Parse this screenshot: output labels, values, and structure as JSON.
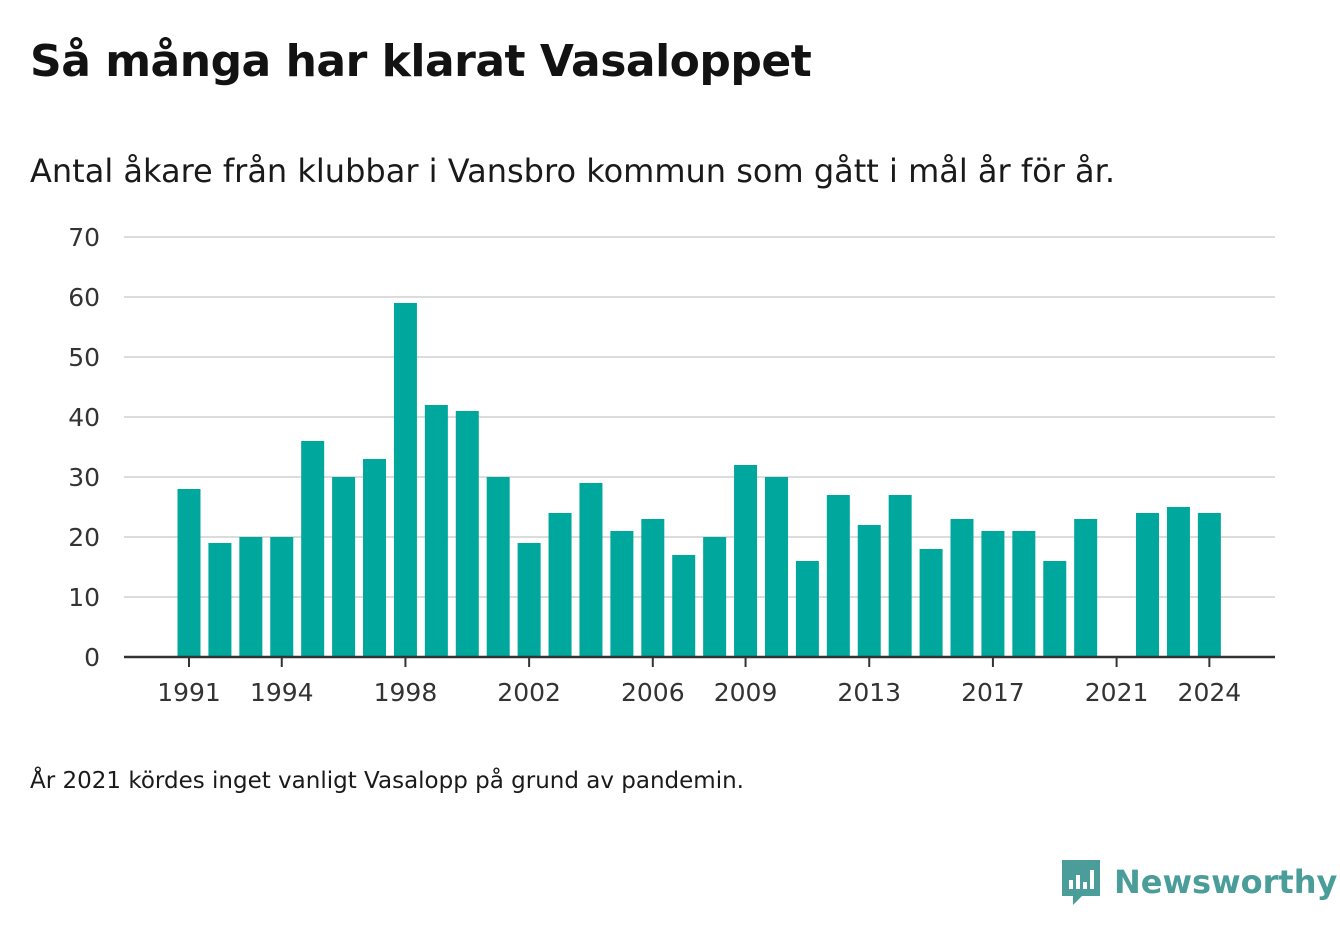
{
  "chart_data": {
    "type": "bar",
    "title": "Så många har klarat Vasaloppet",
    "subtitle": "Antal åkare från klubbar i Vansbro kommun som gått i mål år för år.",
    "xlabel": "",
    "ylabel": "",
    "categories": [
      1991,
      1992,
      1993,
      1994,
      1995,
      1996,
      1997,
      1998,
      1999,
      2000,
      2001,
      2002,
      2003,
      2004,
      2005,
      2006,
      2007,
      2008,
      2009,
      2010,
      2011,
      2012,
      2013,
      2014,
      2015,
      2016,
      2017,
      2018,
      2019,
      2020,
      2021,
      2022,
      2023,
      2024
    ],
    "values": [
      28,
      19,
      20,
      20,
      36,
      30,
      33,
      59,
      42,
      41,
      30,
      19,
      24,
      29,
      21,
      23,
      17,
      20,
      32,
      30,
      16,
      27,
      22,
      27,
      18,
      23,
      21,
      21,
      16,
      23,
      null,
      24,
      25,
      24
    ],
    "x_tick_labels": [
      "1991",
      "1994",
      "1998",
      "2002",
      "2006",
      "2009",
      "2013",
      "2017",
      "2021",
      "2024"
    ],
    "y_ticks": [
      0,
      10,
      20,
      30,
      40,
      50,
      60,
      70
    ],
    "ylim": [
      0,
      70
    ],
    "grid": "horizontal",
    "bar_color": "#00a79d",
    "note": "År 2021 kördes inget vanligt Vasalopp på grund av pandemin."
  },
  "branding": {
    "name": "Newsworthy",
    "icon": "newsworthy-logo-icon",
    "color": "#4a9d98"
  }
}
